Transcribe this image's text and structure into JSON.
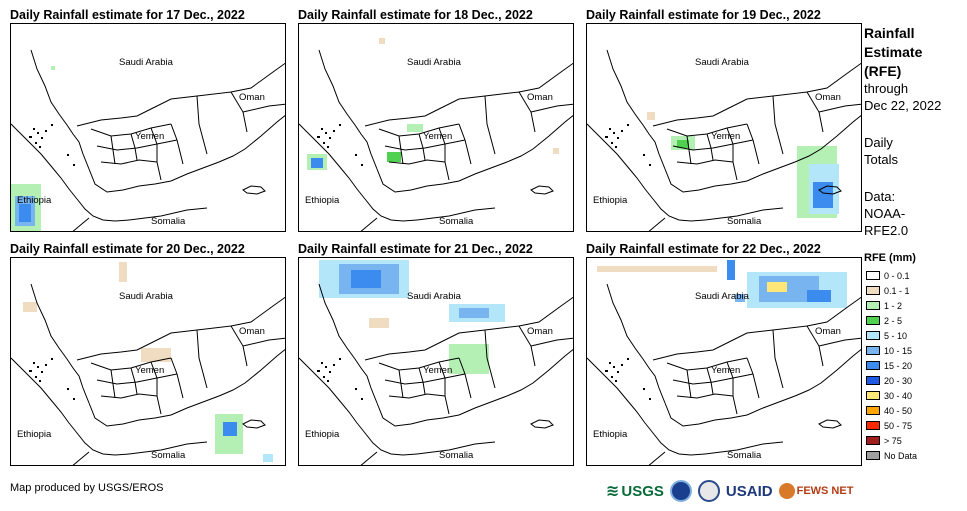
{
  "panels": [
    {
      "title": "Daily Rainfall estimate for 17 Dec., 2022",
      "labels": {
        "saudi": "Saudi Arabia",
        "oman": "Oman",
        "yemen": "Yemen",
        "ethiopia": "Ethiopia",
        "somalia": "Somalia"
      }
    },
    {
      "title": "Daily Rainfall estimate for 18 Dec., 2022",
      "labels": {
        "saudi": "Saudi Arabia",
        "oman": "Oman",
        "yemen": "Yemen",
        "ethiopia": "Ethiopia",
        "somalia": "Somalia"
      }
    },
    {
      "title": "Daily Rainfall estimate for 19 Dec., 2022",
      "labels": {
        "saudi": "Saudi Arabia",
        "oman": "Oman",
        "yemen": "Yemen",
        "ethiopia": "Ethiopia",
        "somalia": "Somalia"
      }
    },
    {
      "title": "Daily Rainfall estimate for 20 Dec., 2022",
      "labels": {
        "saudi": "Saudi Arabia",
        "oman": "Oman",
        "yemen": "Yemen",
        "ethiopia": "Ethiopia",
        "somalia": "Somalia"
      }
    },
    {
      "title": "Daily Rainfall estimate for 21 Dec., 2022",
      "labels": {
        "saudi": "Saudi Arabia",
        "oman": "Oman",
        "yemen": "Yemen",
        "ethiopia": "Ethiopia",
        "somalia": "Somalia"
      }
    },
    {
      "title": "Daily Rainfall estimate for 22 Dec., 2022",
      "labels": {
        "saudi": "Saudi Arabia",
        "oman": "Oman",
        "yemen": "Yemen",
        "ethiopia": "Ethiopia",
        "somalia": "Somalia"
      }
    }
  ],
  "sidebar": {
    "title_line1": "Rainfall",
    "title_line2": "Estimate",
    "title_line3": "(RFE)",
    "through": "through",
    "date": "Dec 22, 2022",
    "daily": "Daily",
    "totals": "Totals",
    "data_label": "Data:",
    "source1": "NOAA-",
    "source2": "RFE2.0"
  },
  "legend": {
    "title": "RFE (mm)",
    "items": [
      {
        "label": "0 - 0.1",
        "color": "#ffffff"
      },
      {
        "label": "0.1 - 1",
        "color": "#f0dcc0"
      },
      {
        "label": "1 - 2",
        "color": "#b4f0b4"
      },
      {
        "label": "2 - 5",
        "color": "#50d250"
      },
      {
        "label": "5 - 10",
        "color": "#b4e6fa"
      },
      {
        "label": "10 - 15",
        "color": "#78b4f0"
      },
      {
        "label": "15 - 20",
        "color": "#3c8cf0"
      },
      {
        "label": "20 - 30",
        "color": "#1e5ae6"
      },
      {
        "label": "30 - 40",
        "color": "#ffe678"
      },
      {
        "label": "40 - 50",
        "color": "#ffa500"
      },
      {
        "label": "50 - 75",
        "color": "#ff2800"
      },
      {
        "label": "> 75",
        "color": "#a01e1e"
      },
      {
        "label": "No Data",
        "color": "#a0a0a0"
      }
    ]
  },
  "credit": "Map produced by USGS/EROS",
  "logos": {
    "usgs": "USGS",
    "usaid": "USAID",
    "fewsnet": "FEWS NET"
  }
}
